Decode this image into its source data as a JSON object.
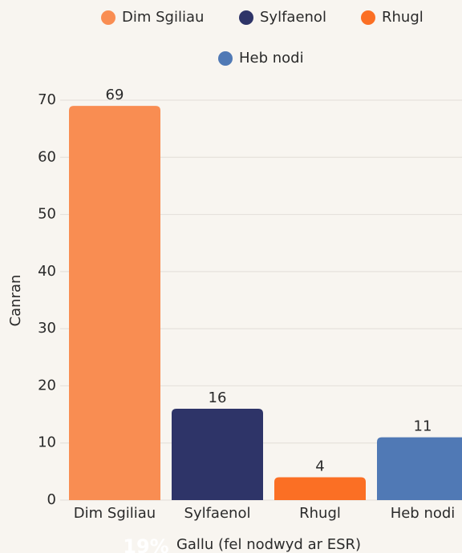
{
  "chart_data": {
    "type": "bar",
    "categories": [
      "Dim Sgiliau",
      "Sylfaenol",
      "Rhugl",
      "Heb nodi"
    ],
    "values": [
      69,
      16,
      4,
      11
    ],
    "colors": [
      "#f98d52",
      "#2e3468",
      "#fb6f24",
      "#5079b5"
    ],
    "ylabel": "Canran",
    "xlabel": "Gallu (fel nodwyd ar ESR)",
    "annotation": "19%",
    "ylim": [
      0,
      70
    ],
    "yticks": [
      0,
      10,
      20,
      30,
      40,
      50,
      60,
      70
    ],
    "grid": true,
    "legend": "top"
  }
}
